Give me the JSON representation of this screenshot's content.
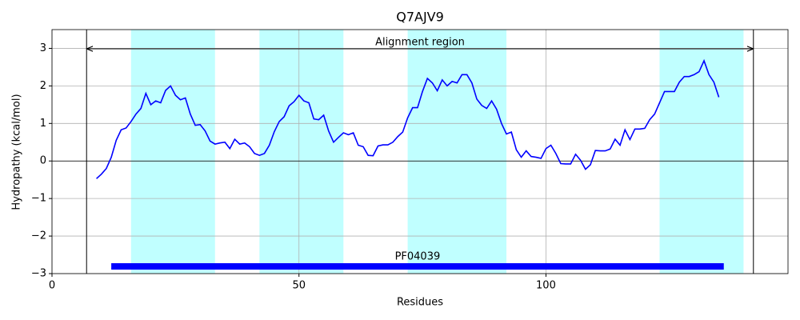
{
  "chart_data": {
    "type": "line",
    "title": "Q7AJV9",
    "xlabel": "Residues",
    "ylabel": "Hydropathy (kcal/mol)",
    "xlim": [
      0,
      149
    ],
    "ylim": [
      -3,
      3.5
    ],
    "xticks": [
      0,
      50,
      100
    ],
    "yticks": [
      {
        "value": -3,
        "label": "−3"
      },
      {
        "value": -2,
        "label": "−2"
      },
      {
        "value": -1,
        "label": "−1"
      },
      0,
      1,
      2,
      3
    ],
    "grid": true,
    "regions": [
      [
        16,
        33
      ],
      [
        42,
        59
      ],
      [
        72,
        92
      ],
      [
        123,
        140
      ]
    ],
    "region_color": "#c0ffff",
    "boundaries": [
      7,
      142
    ],
    "annotation": {
      "text": "Alignment region",
      "start": 7,
      "end": 142
    },
    "domain": {
      "label": "PF04039",
      "start": 12,
      "end": 136,
      "color": "#0000ff"
    },
    "series": [
      {
        "color": "#0000ff",
        "x": [
          9,
          10,
          11,
          12,
          13,
          14,
          15,
          16,
          17,
          18,
          19,
          20,
          21,
          22,
          23,
          24,
          25,
          26,
          27,
          28,
          29,
          30,
          31,
          32,
          33,
          34,
          35,
          36,
          37,
          38,
          39,
          40,
          41,
          42,
          43,
          44,
          45,
          46,
          47,
          48,
          49,
          50,
          51,
          52,
          53,
          54,
          55,
          56,
          57,
          58,
          59,
          60,
          61,
          62,
          63,
          64,
          65,
          66,
          67,
          68,
          69,
          70,
          71,
          72,
          73,
          74,
          75,
          76,
          77,
          78,
          79,
          80,
          81,
          82,
          83,
          84,
          85,
          86,
          87,
          88,
          89,
          90,
          91,
          92,
          93,
          94,
          95,
          96,
          97,
          98,
          99,
          100,
          101,
          102,
          103,
          104,
          105,
          106,
          107,
          108,
          109,
          110,
          111,
          112,
          113,
          114,
          115,
          116,
          117,
          118,
          119,
          120,
          121,
          122,
          123,
          124,
          125,
          126,
          127,
          128,
          129,
          130,
          131,
          132,
          133,
          134,
          135
        ],
        "values": [
          -0.47,
          -0.35,
          -0.2,
          0.1,
          0.55,
          0.83,
          0.88,
          1.05,
          1.25,
          1.4,
          1.8,
          1.5,
          1.6,
          1.55,
          1.88,
          2.0,
          1.75,
          1.63,
          1.68,
          1.25,
          0.95,
          0.97,
          0.8,
          0.53,
          0.45,
          0.48,
          0.5,
          0.33,
          0.58,
          0.45,
          0.48,
          0.38,
          0.2,
          0.15,
          0.2,
          0.42,
          0.78,
          1.05,
          1.18,
          1.47,
          1.58,
          1.75,
          1.6,
          1.55,
          1.12,
          1.1,
          1.22,
          0.8,
          0.5,
          0.63,
          0.75,
          0.7,
          0.75,
          0.42,
          0.38,
          0.15,
          0.14,
          0.4,
          0.43,
          0.43,
          0.5,
          0.65,
          0.77,
          1.15,
          1.42,
          1.42,
          1.85,
          2.2,
          2.08,
          1.87,
          2.16,
          2.0,
          2.12,
          2.08,
          2.3,
          2.3,
          2.08,
          1.65,
          1.48,
          1.4,
          1.6,
          1.38,
          1.0,
          0.72,
          0.77,
          0.3,
          0.1,
          0.27,
          0.12,
          0.1,
          0.07,
          0.33,
          0.42,
          0.2,
          -0.07,
          -0.08,
          -0.08,
          0.18,
          0.02,
          -0.22,
          -0.1,
          0.28,
          0.27,
          0.27,
          0.32,
          0.58,
          0.42,
          0.83,
          0.57,
          0.85,
          0.85,
          0.87,
          1.1,
          1.25,
          1.55,
          1.85,
          1.85,
          1.85,
          2.1,
          2.25,
          2.25,
          2.3,
          2.38,
          2.67,
          2.3,
          2.1,
          1.7
        ]
      }
    ]
  }
}
